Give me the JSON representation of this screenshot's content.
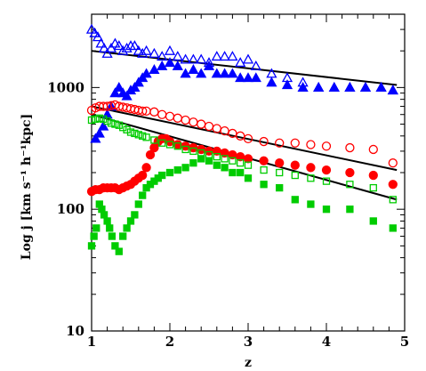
{
  "chart_data": {
    "type": "scatter",
    "title": "",
    "xlabel": "z",
    "ylabel": "Log j [km s⁻¹ h⁻¹kpc]",
    "xlim": [
      1,
      5
    ],
    "ylim": [
      10,
      4000
    ],
    "yscale": "log",
    "xticks": [
      "1",
      "2",
      "3",
      "4",
      "5"
    ],
    "yticks": [
      "10",
      "100",
      "1000"
    ],
    "grid": false,
    "series": [
      {
        "marker": "triangle-open",
        "color": "#0000ff",
        "x": [
          1.0,
          1.04,
          1.08,
          1.12,
          1.16,
          1.2,
          1.25,
          1.3,
          1.35,
          1.4,
          1.45,
          1.5,
          1.55,
          1.6,
          1.65,
          1.7,
          1.8,
          1.9,
          2.0,
          2.1,
          2.2,
          2.3,
          2.4,
          2.5,
          2.6,
          2.7,
          2.8,
          2.9,
          3.0,
          3.1,
          3.3,
          3.5,
          3.7,
          3.9,
          4.1,
          4.3,
          4.5,
          4.7,
          4.85
        ],
        "y": [
          3000,
          2800,
          2600,
          2300,
          2100,
          1900,
          2100,
          2300,
          2200,
          2000,
          2100,
          2200,
          2200,
          2000,
          1900,
          2000,
          1900,
          1800,
          2000,
          1800,
          1700,
          1700,
          1700,
          1600,
          1800,
          1800,
          1800,
          1600,
          1700,
          1500,
          1300,
          1200,
          1100,
          1000,
          1000,
          1000,
          1000,
          1000,
          950
        ]
      },
      {
        "marker": "triangle-filled",
        "color": "#0000ff",
        "x": [
          1.05,
          1.1,
          1.15,
          1.2,
          1.25,
          1.3,
          1.35,
          1.4,
          1.45,
          1.5,
          1.55,
          1.6,
          1.65,
          1.7,
          1.8,
          1.9,
          2.0,
          2.1,
          2.2,
          2.3,
          2.4,
          2.5,
          2.6,
          2.7,
          2.8,
          2.9,
          3.0,
          3.1,
          3.3,
          3.5,
          3.7,
          3.9,
          4.1,
          4.3,
          4.5,
          4.7,
          4.85
        ],
        "y": [
          380,
          420,
          480,
          600,
          700,
          900,
          1000,
          900,
          850,
          950,
          1000,
          1100,
          1200,
          1300,
          1400,
          1500,
          1600,
          1500,
          1300,
          1400,
          1300,
          1500,
          1300,
          1300,
          1300,
          1200,
          1200,
          1200,
          1100,
          1050,
          1000,
          1000,
          1000,
          1000,
          1000,
          1000,
          950
        ]
      },
      {
        "marker": "circle-open",
        "color": "#ff0000",
        "x": [
          1.0,
          1.05,
          1.1,
          1.15,
          1.2,
          1.25,
          1.3,
          1.35,
          1.4,
          1.45,
          1.5,
          1.55,
          1.6,
          1.65,
          1.7,
          1.8,
          1.9,
          2.0,
          2.1,
          2.2,
          2.3,
          2.4,
          2.5,
          2.6,
          2.7,
          2.8,
          2.9,
          3.0,
          3.2,
          3.4,
          3.6,
          3.8,
          4.0,
          4.3,
          4.6,
          4.85
        ],
        "y": [
          650,
          680,
          700,
          700,
          700,
          710,
          720,
          700,
          690,
          680,
          670,
          660,
          650,
          640,
          640,
          630,
          600,
          580,
          560,
          540,
          520,
          500,
          480,
          460,
          440,
          420,
          400,
          380,
          360,
          350,
          350,
          340,
          330,
          320,
          310,
          240
        ]
      },
      {
        "marker": "circle-filled",
        "color": "#ff0000",
        "x": [
          1.0,
          1.05,
          1.1,
          1.15,
          1.2,
          1.25,
          1.3,
          1.35,
          1.4,
          1.45,
          1.5,
          1.55,
          1.6,
          1.65,
          1.7,
          1.75,
          1.8,
          1.85,
          1.9,
          1.95,
          2.0,
          2.1,
          2.2,
          2.3,
          2.4,
          2.5,
          2.6,
          2.7,
          2.8,
          2.9,
          3.0,
          3.2,
          3.4,
          3.6,
          3.8,
          4.0,
          4.3,
          4.6,
          4.85
        ],
        "y": [
          140,
          145,
          145,
          150,
          150,
          150,
          150,
          145,
          150,
          155,
          160,
          170,
          180,
          190,
          220,
          280,
          320,
          360,
          380,
          380,
          360,
          340,
          330,
          320,
          310,
          300,
          300,
          290,
          280,
          270,
          260,
          250,
          240,
          230,
          220,
          210,
          200,
          190,
          160
        ]
      },
      {
        "marker": "square-open",
        "color": "#00cc00",
        "x": [
          1.0,
          1.05,
          1.1,
          1.15,
          1.2,
          1.25,
          1.3,
          1.35,
          1.4,
          1.45,
          1.5,
          1.55,
          1.6,
          1.65,
          1.7,
          1.8,
          1.9,
          2.0,
          2.1,
          2.2,
          2.3,
          2.4,
          2.5,
          2.6,
          2.7,
          2.8,
          2.9,
          3.0,
          3.2,
          3.4,
          3.6,
          3.8,
          4.0,
          4.3,
          4.6,
          4.85
        ],
        "y": [
          540,
          550,
          560,
          550,
          530,
          510,
          500,
          490,
          470,
          450,
          430,
          420,
          410,
          400,
          390,
          370,
          350,
          340,
          330,
          310,
          300,
          290,
          280,
          270,
          260,
          250,
          240,
          230,
          210,
          200,
          190,
          180,
          170,
          160,
          150,
          120
        ]
      },
      {
        "marker": "square-filled",
        "color": "#00cc00",
        "x": [
          1.0,
          1.03,
          1.06,
          1.1,
          1.13,
          1.16,
          1.2,
          1.23,
          1.26,
          1.3,
          1.35,
          1.4,
          1.45,
          1.5,
          1.55,
          1.6,
          1.65,
          1.7,
          1.75,
          1.8,
          1.85,
          1.9,
          2.0,
          2.1,
          2.2,
          2.3,
          2.4,
          2.5,
          2.6,
          2.7,
          2.8,
          2.9,
          3.0,
          3.2,
          3.4,
          3.6,
          3.8,
          4.0,
          4.3,
          4.6,
          4.85
        ],
        "y": [
          50,
          60,
          70,
          110,
          100,
          90,
          80,
          70,
          60,
          50,
          45,
          60,
          70,
          80,
          90,
          110,
          130,
          150,
          160,
          170,
          180,
          190,
          200,
          210,
          220,
          240,
          260,
          250,
          230,
          220,
          200,
          200,
          180,
          160,
          150,
          120,
          110,
          100,
          100,
          80,
          70
        ]
      }
    ],
    "fit_lines": [
      {
        "color": "#000000",
        "x": [
          1.0,
          4.9
        ],
        "y": [
          2000,
          1050
        ]
      },
      {
        "color": "#000000",
        "x": [
          1.0,
          4.9
        ],
        "y": [
          700,
          210
        ]
      },
      {
        "color": "#000000",
        "x": [
          1.0,
          4.9
        ],
        "y": [
          600,
          120
        ]
      }
    ]
  }
}
